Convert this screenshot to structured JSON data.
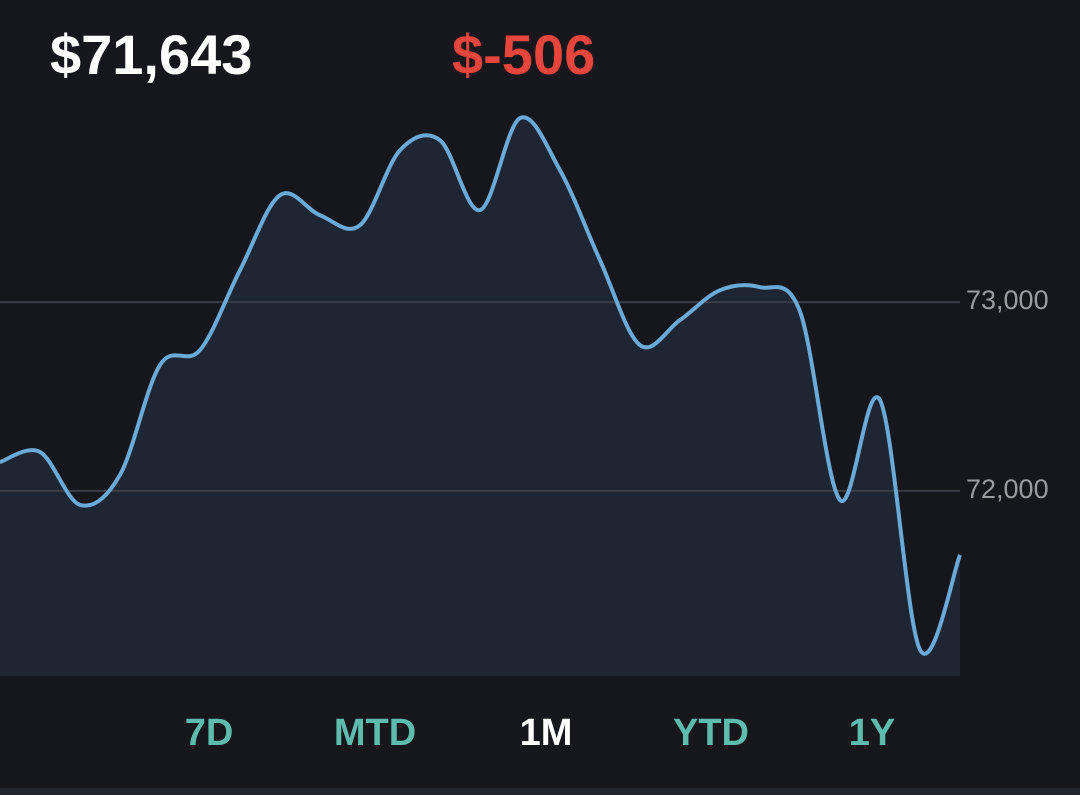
{
  "header": {
    "value": "$71,643",
    "change": "$-506"
  },
  "chart_data": {
    "type": "area",
    "values": [
      72153,
      72206,
      71926,
      72085,
      72667,
      72746,
      73169,
      73566,
      73460,
      73407,
      73804,
      73857,
      73487,
      73974,
      73698,
      73222,
      72772,
      72905,
      73063,
      73079,
      72950,
      71952,
      72481,
      71159,
      71661
    ],
    "color": "#6aaad8",
    "ylim": [
      71020,
      74070
    ],
    "yticks": [
      {
        "value": 72000,
        "label": "72,000"
      },
      {
        "value": 73000,
        "label": "73,000"
      }
    ],
    "grid": true
  },
  "ranges": [
    "7D",
    "MTD",
    "1M",
    "YTD",
    "1Y"
  ],
  "selected_range": "1M"
}
